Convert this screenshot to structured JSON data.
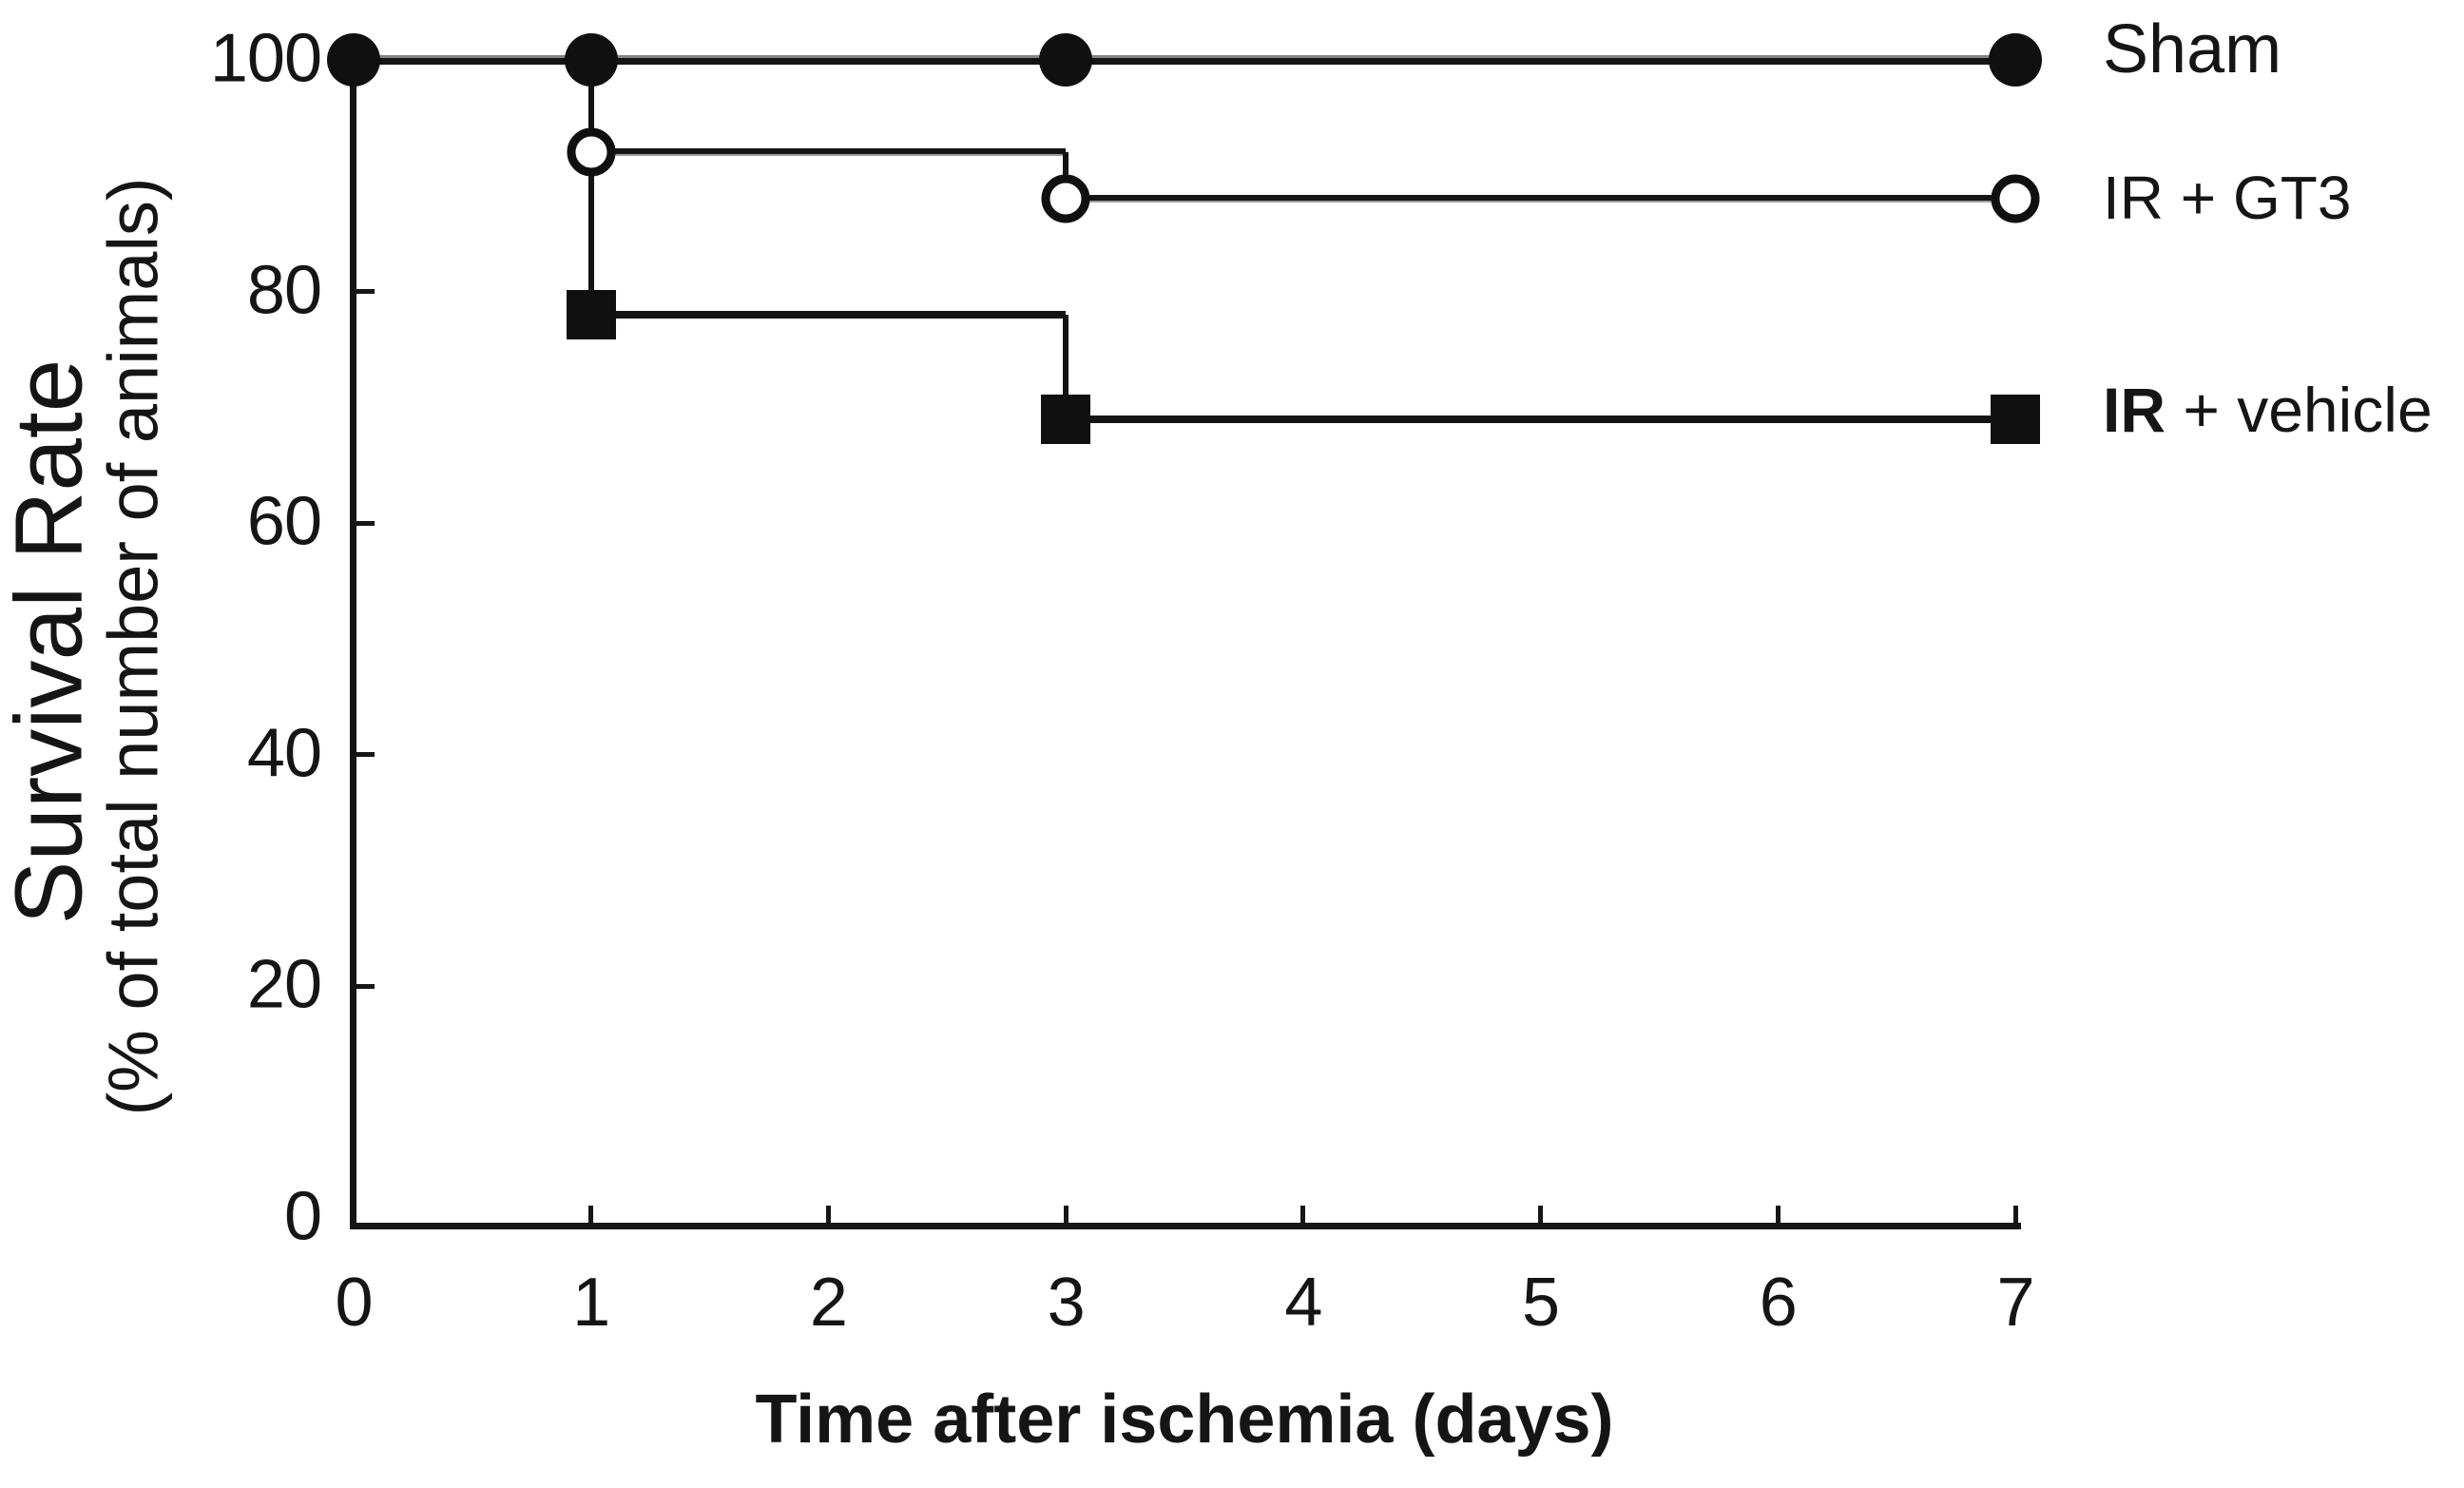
{
  "figure": {
    "background": "#ffffff",
    "ink_color": "#151515"
  },
  "chart_data": {
    "type": "line",
    "subtype": "kaplan-meier-step-survival",
    "title": "",
    "xlabel": "Time after ischemia (days)",
    "ylabel": "Survival Rate",
    "ylabel2": "(% of total number of animals)",
    "xlim": [
      0,
      7
    ],
    "ylim": [
      0,
      100
    ],
    "x_ticks": [
      0,
      1,
      2,
      3,
      4,
      5,
      6,
      7
    ],
    "y_ticks": [
      0,
      20,
      40,
      60,
      80,
      100
    ],
    "grid": false,
    "legend_position": "right of curve ends",
    "series": [
      {
        "name": "Sham",
        "marker": "filled-circle",
        "line_width": 10,
        "days": [
          0,
          1,
          3,
          7
        ],
        "survival_pct": [
          100,
          100,
          100,
          100
        ],
        "path": [
          [
            0,
            100
          ],
          [
            7,
            100
          ]
        ],
        "marker_points": [
          [
            0,
            100
          ],
          [
            1,
            100
          ],
          [
            3,
            100
          ],
          [
            7,
            100
          ]
        ]
      },
      {
        "name": "IR + GT3",
        "marker": "open-circle",
        "line_width": 8,
        "days": [
          1,
          3,
          7
        ],
        "survival_pct": [
          92,
          88,
          88
        ],
        "path": [
          [
            1,
            100
          ],
          [
            1,
            92
          ],
          [
            3,
            92
          ],
          [
            3,
            88
          ],
          [
            7,
            88
          ]
        ],
        "marker_points": [
          [
            1,
            92
          ],
          [
            3,
            88
          ],
          [
            7,
            88
          ]
        ]
      },
      {
        "name": "IR + vehicle",
        "marker": "filled-square",
        "line_width": 8,
        "days": [
          1,
          3,
          7
        ],
        "survival_pct": [
          78,
          69,
          69
        ],
        "path": [
          [
            1,
            100
          ],
          [
            1,
            78
          ],
          [
            3,
            78
          ],
          [
            3,
            69
          ],
          [
            7,
            69
          ]
        ],
        "marker_points": [
          [
            1,
            78
          ],
          [
            3,
            69
          ],
          [
            7,
            69
          ]
        ]
      }
    ]
  },
  "legend": {
    "items": [
      {
        "bold": "",
        "regular": "Sham"
      },
      {
        "bold": "",
        "regular": "IR + GT3"
      },
      {
        "bold": "IR",
        "regular": " + vehicle"
      }
    ]
  }
}
